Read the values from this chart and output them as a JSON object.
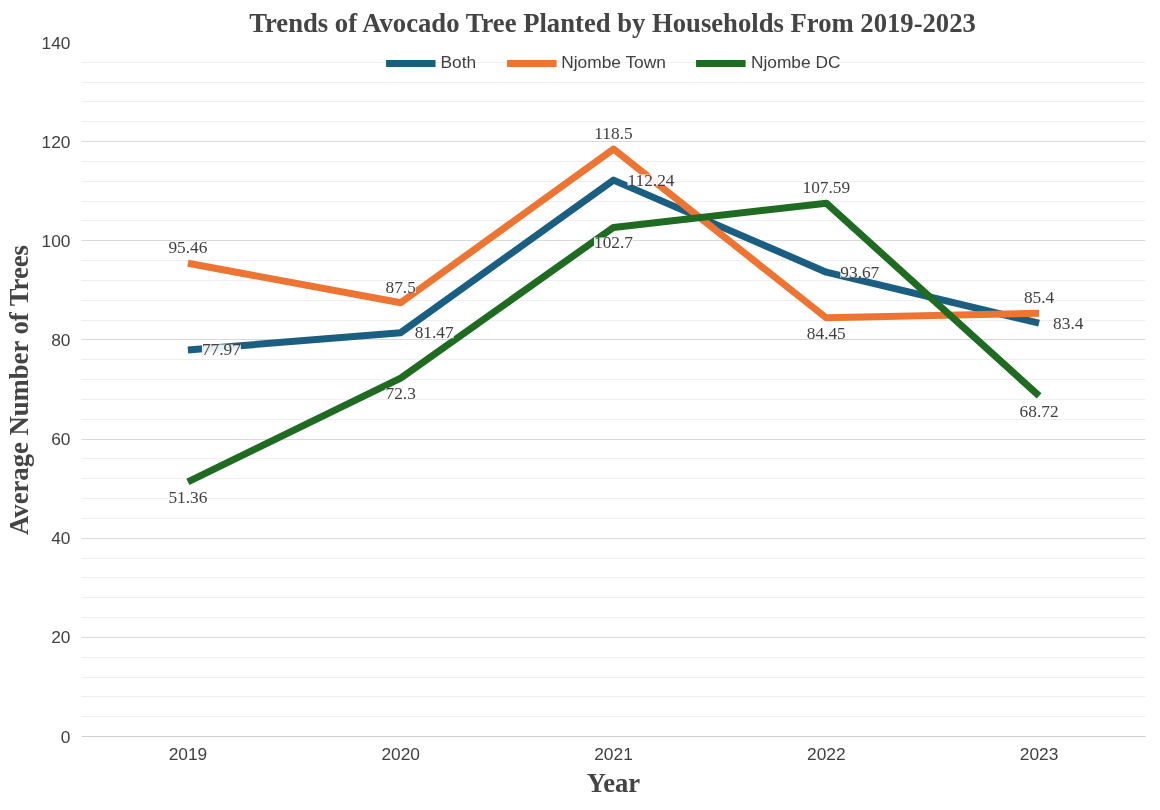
{
  "chart_data": {
    "type": "line",
    "title": "Trends of Avocado Tree Planted by Households From 2019-2023",
    "xlabel": "Year",
    "ylabel": "Average Number of Trees",
    "categories": [
      "2019",
      "2020",
      "2021",
      "2022",
      "2023"
    ],
    "series": [
      {
        "name": "Both",
        "color": "#1a5e82",
        "values": [
          77.97,
          81.47,
          112.24,
          93.67,
          83.4
        ]
      },
      {
        "name": "Njombe Town",
        "color": "#ed7533",
        "values": [
          95.46,
          87.5,
          118.5,
          84.45,
          85.4
        ]
      },
      {
        "name": "Njombe DC",
        "color": "#1e6b21",
        "values": [
          51.36,
          72.3,
          102.7,
          107.59,
          68.72
        ]
      }
    ],
    "ylim": [
      0,
      140
    ],
    "yticks": [
      0,
      20,
      40,
      60,
      80,
      100,
      120,
      140
    ],
    "grid": "y",
    "legend": "top",
    "data_labels": true,
    "marker": "none",
    "line_style": "solid"
  }
}
